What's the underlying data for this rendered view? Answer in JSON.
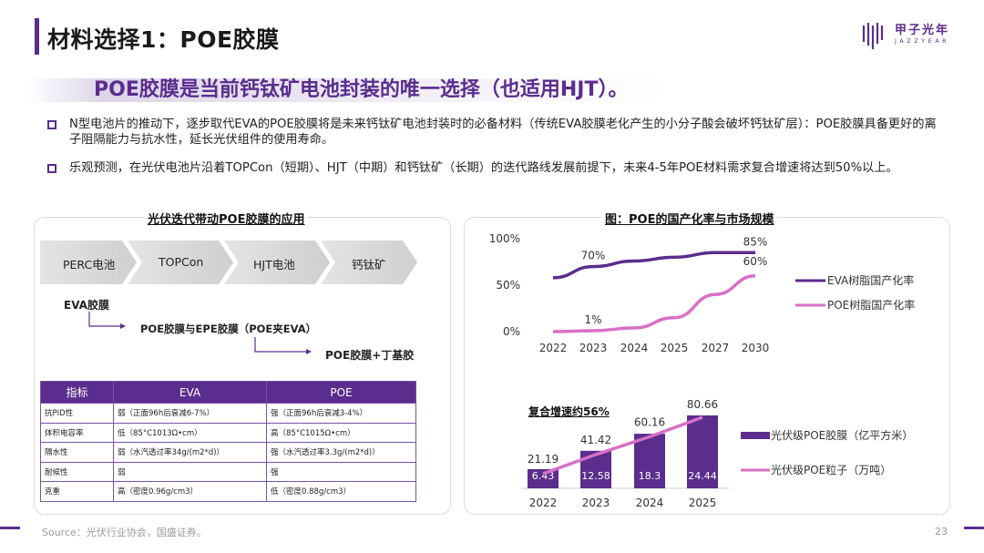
{
  "title": "材料选择1：POE胶膜",
  "logo": {
    "name": "甲子光年",
    "sub": "JAZZYEAR"
  },
  "headline": "POE胶膜是当前钙钛矿电池封装的唯一选择（也适用HJT）。",
  "bullets": [
    "N型电池片的推动下，逐步取代EVA的POE胶膜将是未来钙钛矿电池封装时的必备材料（传统EVA胶膜老化产生的小分子酸会破坏钙钛矿层）：POE胶膜具备更好的离子阻隔能力与抗水性，延长光伏组件的使用寿命。",
    "乐观预测，在光伏电池片沿着TOPCon（短期）、HJT（中期）和钙钛矿（长期）的迭代路线发展前提下，未来4-5年POE材料需求复合增速将达到50%以上。"
  ],
  "left_panel": {
    "title": "光伏迭代带动POE胶膜的应用",
    "steps": [
      "PERC电池",
      "TOPCon",
      "HJT电池",
      "钙钛矿"
    ],
    "films": [
      "EVA胶膜",
      "POE胶膜与EPE胶膜（POE夹EVA）",
      "POE胶膜+丁基胶"
    ],
    "table": {
      "headers": [
        "指标",
        "EVA",
        "POE"
      ],
      "rows": [
        [
          "抗PID性",
          "弱（正面96h后衰减6-7%）",
          "强（正面96h后衰减3-4%）"
        ],
        [
          "体积电容率",
          "低（85°C1013Ω•cm）",
          "高（85°C1015Ω•cm）"
        ],
        [
          "隔水性",
          "弱（水汽透过率34g/(m2*d)）",
          "强（水汽透过率3.3g/(m2*d)）"
        ],
        [
          "耐候性",
          "弱",
          "强"
        ],
        [
          "克重",
          "高（密度0.96g/cm3）",
          "低（密度0.88g/cm3）"
        ]
      ]
    }
  },
  "right_panel": {
    "title": "图：POE的国产化率与市场规模",
    "growth_label": "复合增速约56%",
    "colors": {
      "purple": "#5b2d8e",
      "pink": "#d86fc6"
    }
  },
  "chart_data": [
    {
      "type": "line",
      "x": [
        "2022",
        "2023",
        "2024",
        "2025",
        "2027",
        "2030"
      ],
      "ylim": [
        0,
        100
      ],
      "yticks": [
        "0%",
        "50%",
        "100%"
      ],
      "series": [
        {
          "name": "EVA树脂国产化率",
          "values": [
            58,
            70,
            76,
            80,
            85,
            85
          ]
        },
        {
          "name": "POE树脂国产化率",
          "values": [
            0,
            1,
            4,
            15,
            40,
            60
          ]
        }
      ],
      "data_labels": [
        {
          "series": 0,
          "index": 1,
          "text": "70%"
        },
        {
          "series": 0,
          "index": 5,
          "text": "85%"
        },
        {
          "series": 1,
          "index": 1,
          "text": "1%"
        },
        {
          "series": 1,
          "index": 5,
          "text": "60%"
        }
      ]
    },
    {
      "type": "bar",
      "categories": [
        "2022",
        "2023",
        "2024",
        "2025"
      ],
      "series": [
        {
          "name": "光伏级POE胶膜（亿平方米）",
          "kind": "bar",
          "values": [
            6.43,
            12.58,
            18.3,
            24.44
          ]
        },
        {
          "name": "光伏级POE粒子（万吨）",
          "kind": "line",
          "values": [
            21.19,
            41.42,
            60.16,
            80.66
          ]
        }
      ]
    }
  ],
  "footer": {
    "source": "Source：光伏行业协会，国盛证券。",
    "page": "23"
  }
}
